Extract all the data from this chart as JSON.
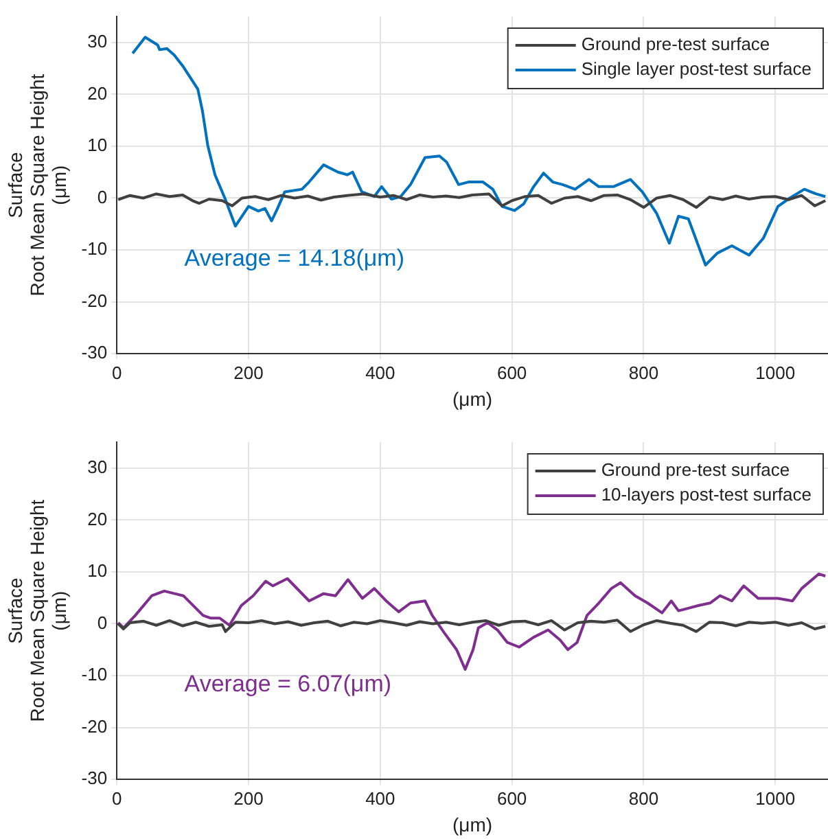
{
  "chart_data": [
    {
      "type": "line",
      "xlabel": "(μm)",
      "ylabel": "Surface\nRoot Mean Square Height\n(μm)",
      "xlim": [
        0,
        1080
      ],
      "xticks": [
        0,
        200,
        400,
        600,
        800,
        1000
      ],
      "ylim": [
        -30,
        35
      ],
      "yticks": [
        -30,
        -20,
        -10,
        0,
        10,
        20,
        30
      ],
      "grid": true,
      "legend": "top right",
      "annotations": [
        "Average = 14.18(μm)"
      ],
      "series": [
        {
          "name": "Ground pre-test surface",
          "color": "#404040",
          "x": [
            2,
            20,
            40,
            60,
            80,
            100,
            115,
            125,
            140,
            160,
            175,
            190,
            210,
            230,
            250,
            270,
            290,
            310,
            330,
            350,
            375,
            400,
            420,
            440,
            460,
            480,
            500,
            520,
            540,
            565,
            585,
            600,
            620,
            640,
            660,
            680,
            700,
            720,
            740,
            760,
            780,
            800,
            820,
            840,
            860,
            880,
            900,
            920,
            940,
            960,
            980,
            1000,
            1020,
            1040,
            1060,
            1076
          ],
          "values": [
            -0.3,
            0.5,
            0,
            0.8,
            0.3,
            0.6,
            -0.5,
            -1,
            -0.2,
            -0.5,
            -1.5,
            0,
            0.3,
            -0.3,
            0.5,
            0,
            0.4,
            -0.4,
            0.2,
            0.5,
            0.8,
            0.2,
            0.5,
            -0.3,
            0.6,
            0.2,
            0.4,
            0.1,
            0.6,
            0.8,
            -1.5,
            -0.5,
            0.3,
            0.5,
            -1,
            0,
            0.3,
            -0.5,
            0.5,
            0.6,
            -0.3,
            -1.8,
            0,
            0.5,
            -0.3,
            -1.8,
            0.2,
            -0.3,
            0.4,
            -0.2,
            0.2,
            0.3,
            -0.3,
            0.5,
            -1.5,
            -0.5
          ]
        },
        {
          "name": "Single layer post-test surface",
          "color": "#0072bd",
          "x": [
            24,
            43,
            62,
            65,
            76,
            87,
            101,
            123,
            130,
            138,
            149,
            164,
            180,
            200,
            215,
            225,
            235,
            244,
            255,
            281,
            292,
            314,
            336,
            350,
            358,
            372,
            391,
            402,
            417,
            431,
            446,
            468,
            490,
            501,
            519,
            534,
            556,
            571,
            585,
            604,
            618,
            633,
            648,
            662,
            677,
            696,
            717,
            732,
            754,
            780,
            798,
            820,
            839,
            853,
            868,
            894,
            912,
            934,
            960,
            982,
            1004,
            1022,
            1044,
            1062,
            1076
          ],
          "values": [
            27.9,
            31,
            29.5,
            28.6,
            28.8,
            27.6,
            25.3,
            21,
            16.8,
            10.2,
            4.5,
            0,
            -5.4,
            -1.6,
            -2.5,
            -2,
            -4.4,
            -2,
            1.2,
            1.7,
            3.1,
            6.4,
            5,
            4.5,
            5,
            1.2,
            0.3,
            2.2,
            -0.2,
            0.3,
            2.6,
            7.8,
            8.1,
            6.9,
            2.6,
            3.1,
            3.1,
            1.7,
            -1.6,
            -2.4,
            -1.1,
            2.2,
            4.8,
            3.1,
            2.6,
            1.7,
            3.6,
            2.2,
            2.2,
            3.6,
            1.2,
            -3,
            -8.7,
            -3.5,
            -4,
            -12.9,
            -10.6,
            -9.2,
            -11,
            -7.7,
            -1.6,
            0,
            1.7,
            0.8,
            0.3
          ]
        }
      ]
    },
    {
      "type": "line",
      "xlabel": "(μm)",
      "ylabel": "Surface\nRoot Mean Square Height\n(μm)",
      "xlim": [
        0,
        1080
      ],
      "xticks": [
        0,
        200,
        400,
        600,
        800,
        1000
      ],
      "ylim": [
        -30,
        35
      ],
      "yticks": [
        -30,
        -20,
        -10,
        0,
        10,
        20,
        30
      ],
      "grid": true,
      "legend": "top right",
      "annotations": [
        "Average = 6.07(μm)"
      ],
      "series": [
        {
          "name": "Ground pre-test surface",
          "color": "#404040",
          "x": [
            2,
            10,
            20,
            40,
            60,
            80,
            100,
            120,
            140,
            160,
            165,
            180,
            200,
            220,
            240,
            260,
            280,
            300,
            320,
            340,
            360,
            380,
            400,
            420,
            440,
            460,
            480,
            500,
            520,
            540,
            560,
            580,
            600,
            620,
            640,
            660,
            680,
            700,
            720,
            740,
            760,
            780,
            800,
            820,
            840,
            860,
            880,
            900,
            920,
            940,
            960,
            980,
            1000,
            1020,
            1040,
            1060,
            1076
          ],
          "values": [
            0,
            -1,
            0.2,
            0.5,
            -0.3,
            0.6,
            -0.4,
            0.3,
            -0.5,
            -0.2,
            -1.5,
            0.3,
            0.2,
            0.6,
            0,
            0.4,
            -0.3,
            0.2,
            0.5,
            -0.4,
            0.3,
            0,
            0.6,
            0.2,
            -0.3,
            0.4,
            0,
            0.3,
            -0.2,
            0.3,
            0.6,
            -0.3,
            0.4,
            0.5,
            -0.2,
            0.6,
            -1.2,
            0.2,
            0.5,
            0.3,
            0.7,
            -1.5,
            -0.2,
            0.6,
            0.1,
            -0.3,
            -1.5,
            0.3,
            0.2,
            -0.4,
            0.3,
            0.1,
            0.3,
            -0.3,
            0.2,
            -1,
            -0.5
          ]
        },
        {
          "name": "10-layers post-test surface",
          "color": "#7e2f8e",
          "x": [
            2,
            10,
            28,
            53,
            72,
            101,
            131,
            142,
            156,
            171,
            189,
            207,
            226,
            237,
            259,
            292,
            314,
            332,
            351,
            373,
            391,
            409,
            428,
            446,
            468,
            479,
            497,
            516,
            529,
            541,
            549,
            563,
            578,
            593,
            611,
            633,
            655,
            673,
            685,
            699,
            714,
            732,
            751,
            765,
            787,
            806,
            828,
            842,
            853,
            868,
            883,
            901,
            916,
            934,
            952,
            974,
            1004,
            1026,
            1040,
            1066,
            1076
          ],
          "values": [
            0.2,
            -0.8,
            1.6,
            5.4,
            6.3,
            5.4,
            1.6,
            1.1,
            1.1,
            -0.3,
            3.5,
            5.4,
            8.2,
            7.3,
            8.7,
            4.4,
            5.8,
            5.4,
            8.5,
            4.9,
            6.8,
            4.4,
            2.3,
            4,
            4.4,
            1.6,
            -1.7,
            -5,
            -8.8,
            -5,
            -0.8,
            0.2,
            -1.2,
            -3.6,
            -4.5,
            -2.6,
            -1.2,
            -3.1,
            -5,
            -3.6,
            1.6,
            4,
            6.8,
            7.9,
            5.4,
            4,
            2.1,
            4.4,
            2.5,
            3,
            3.5,
            4,
            5.4,
            4.4,
            7.3,
            4.9,
            4.9,
            4.4,
            6.8,
            9.6,
            9.2
          ]
        }
      ]
    }
  ]
}
